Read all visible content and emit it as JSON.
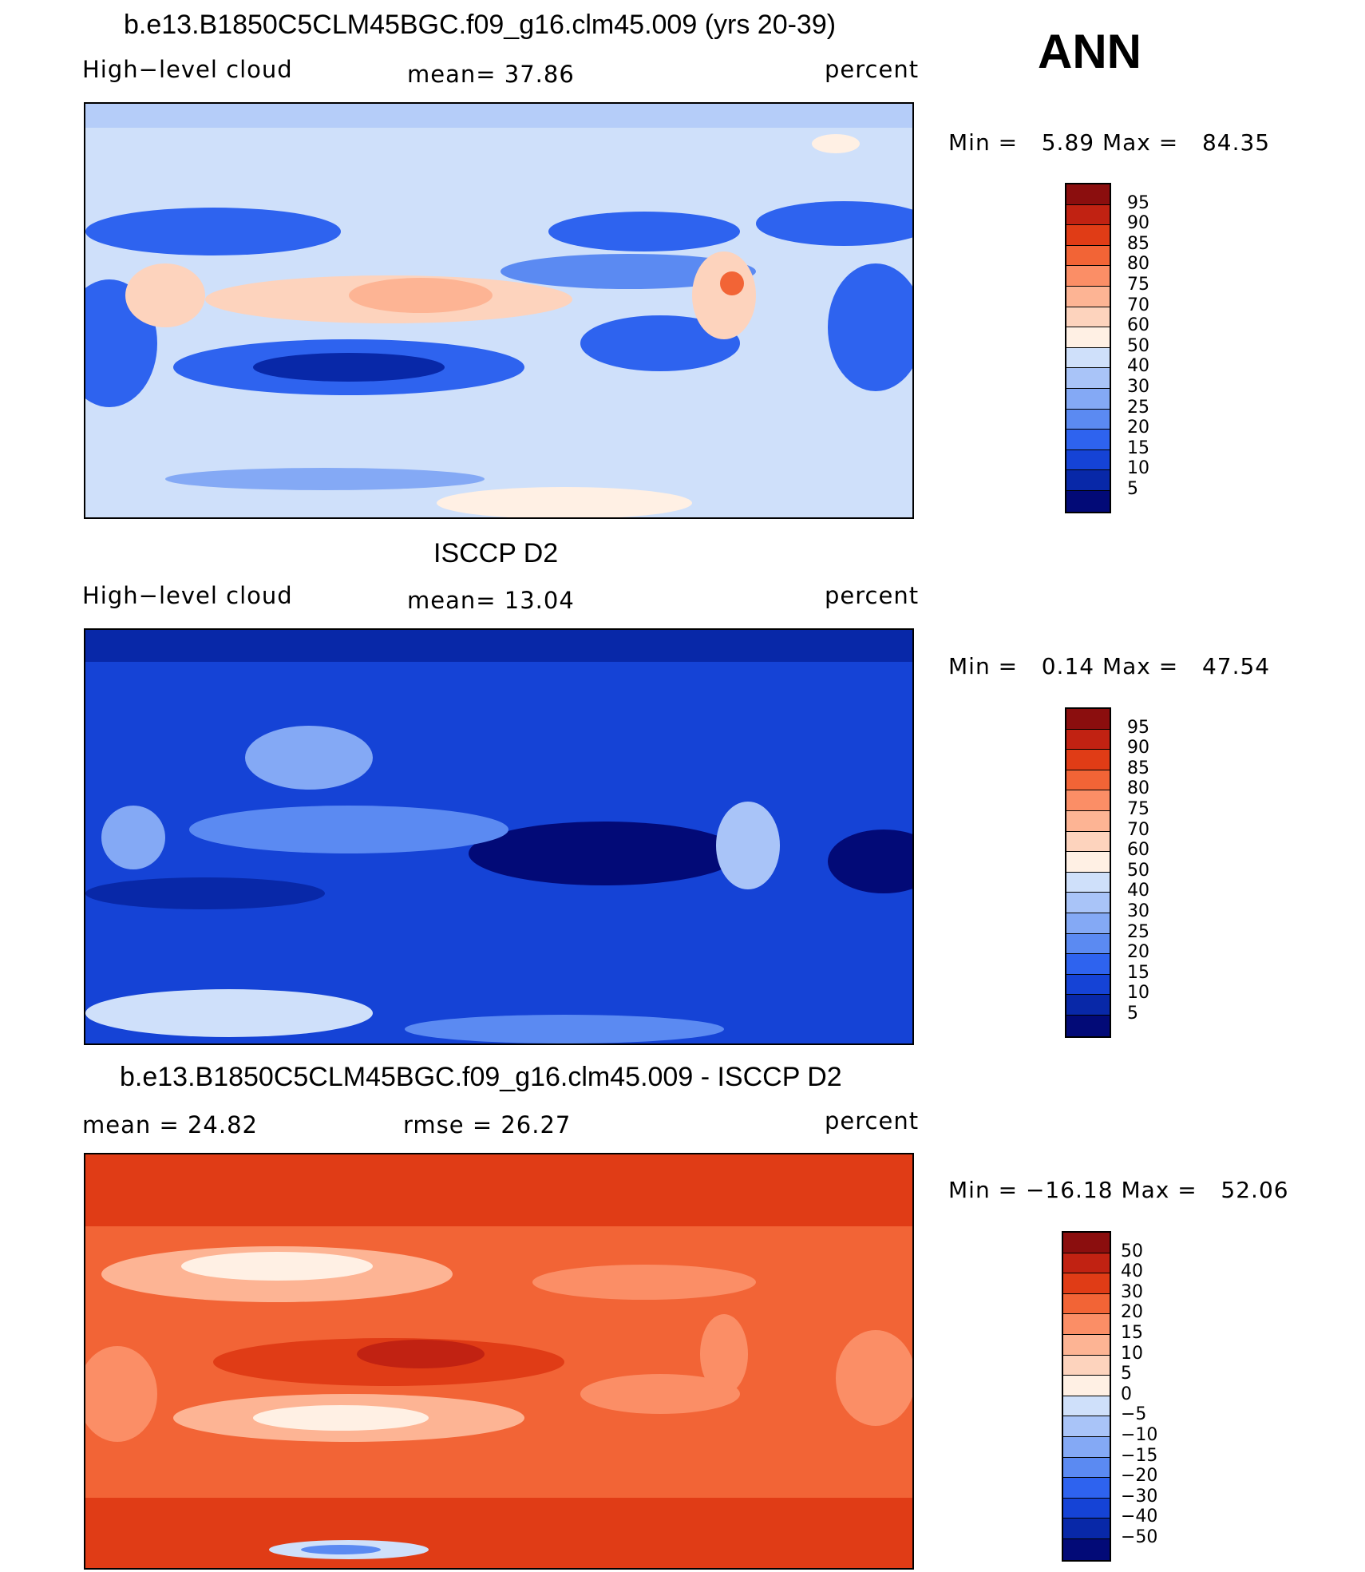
{
  "season": "ANN",
  "panels": [
    {
      "id": "model",
      "title": "b.e13.B1850C5CLM45BGC.f09_g16.clm45.009 (yrs 20-39)",
      "left_label": "High−level cloud",
      "center_label": "mean=  37.86",
      "right_label": "percent",
      "minmax": "Min =   5.89 Max =   84.35",
      "palette": [
        "#020a77",
        "#0828a8",
        "#1543d6",
        "#2e63ef",
        "#5b8af2",
        "#84a9f5",
        "#a9c4f8",
        "#cfe0fa",
        "#fff0e4",
        "#fdd3bd",
        "#fdb494",
        "#fb8e66",
        "#f26436",
        "#e03c16",
        "#c12212",
        "#8b0e0e"
      ],
      "bar_labels": [
        "5",
        "10",
        "15",
        "20",
        "25",
        "30",
        "40",
        "50",
        "60",
        "70",
        "75",
        "80",
        "85",
        "90",
        "95"
      ],
      "field": "high-cloud-model",
      "base_color": "#cfe0fa"
    },
    {
      "id": "obs",
      "title": "ISCCP D2",
      "left_label": "High−level cloud",
      "center_label": "mean=  13.04",
      "right_label": "percent",
      "minmax": "Min =   0.14 Max =   47.54",
      "palette": [
        "#020a77",
        "#0828a8",
        "#1543d6",
        "#2e63ef",
        "#5b8af2",
        "#84a9f5",
        "#a9c4f8",
        "#cfe0fa",
        "#fff0e4",
        "#fdd3bd",
        "#fdb494",
        "#fb8e66",
        "#f26436",
        "#e03c16",
        "#c12212",
        "#8b0e0e"
      ],
      "bar_labels": [
        "5",
        "10",
        "15",
        "20",
        "25",
        "30",
        "40",
        "50",
        "60",
        "70",
        "75",
        "80",
        "85",
        "90",
        "95"
      ],
      "field": "high-cloud-obs",
      "base_color": "#0a1fa8"
    },
    {
      "id": "diff",
      "title": "b.e13.B1850C5CLM45BGC.f09_g16.clm45.009 - ISCCP D2",
      "left_label": "mean =   24.82",
      "center_label": "rmse =   26.27",
      "right_label": "percent",
      "minmax": "Min = −16.18 Max =   52.06",
      "palette": [
        "#020a77",
        "#0828a8",
        "#1543d6",
        "#2e63ef",
        "#5b8af2",
        "#84a9f5",
        "#a9c4f8",
        "#cfe0fa",
        "#fff0e4",
        "#fdd3bd",
        "#fdb494",
        "#fb8e66",
        "#f26436",
        "#e03c16",
        "#c12212",
        "#8b0e0e"
      ],
      "bar_labels": [
        "−50",
        "−40",
        "−30",
        "−20",
        "−15",
        "−10",
        "−5",
        "0",
        "5",
        "10",
        "15",
        "20",
        "30",
        "40",
        "50"
      ],
      "field": "cloud-difference",
      "base_color": "#f2571f"
    }
  ]
}
